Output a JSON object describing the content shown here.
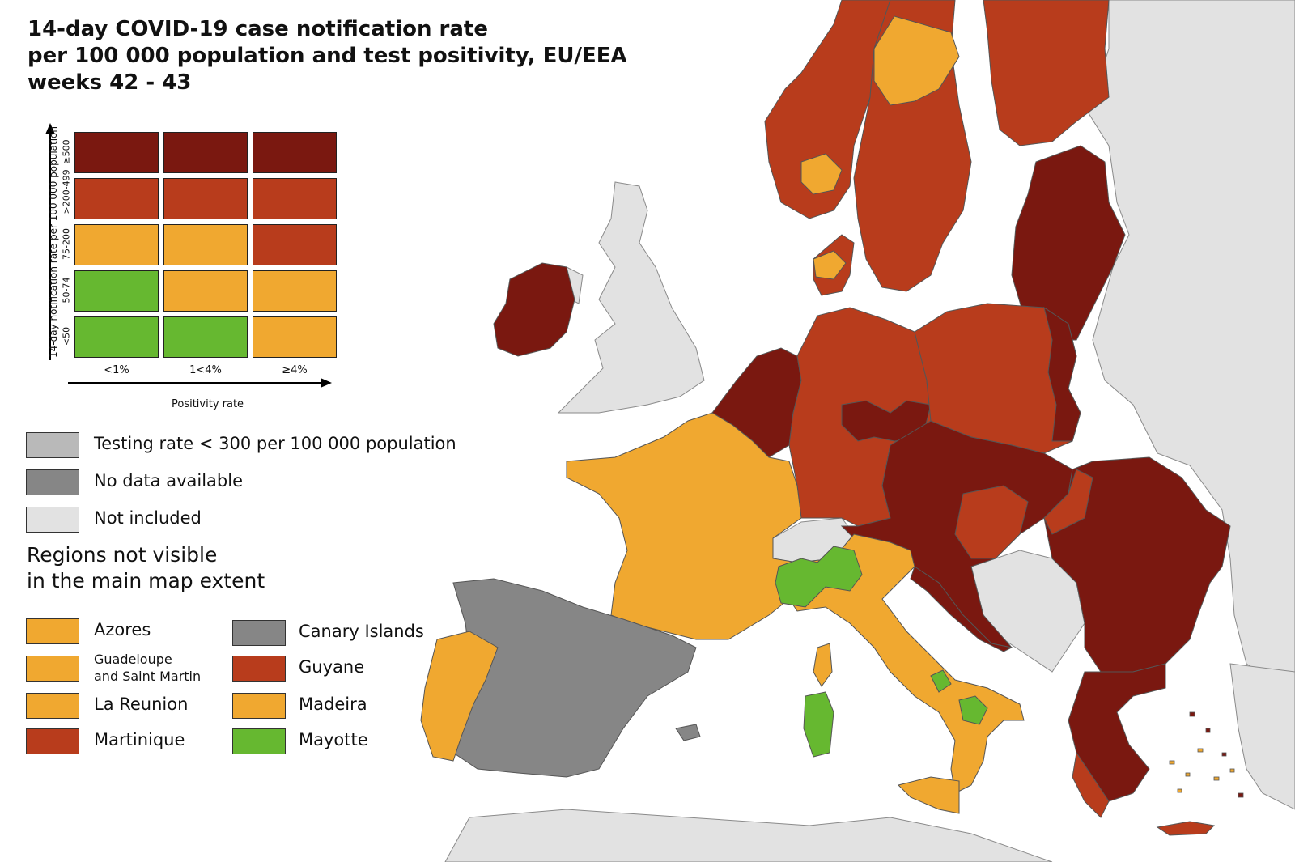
{
  "title": {
    "line1": "14-day COVID-19 case notification rate",
    "line2": "per 100 000 population and test positivity, EU/EEA",
    "line3": "weeks 42 - 43"
  },
  "colors": {
    "dark_red": "#7a1810",
    "red": "#b83c1c",
    "orange": "#f0a830",
    "green": "#66b830",
    "grey_low_testing": "#b9b9b9",
    "grey_no_data": "#868686",
    "grey_not_included": "#e2e2e2",
    "sea": "#ffffff"
  },
  "matrix": {
    "y_axis_title": "14-day notification rate per 100 000 population",
    "x_axis_title": "Positivity rate",
    "rows": [
      "≥500",
      ">200-499",
      "75-200",
      "50-74",
      "<50"
    ],
    "cols": [
      "<1%",
      "1<4%",
      "≥4%"
    ],
    "cells": [
      [
        "dark_red",
        "dark_red",
        "dark_red"
      ],
      [
        "red",
        "red",
        "red"
      ],
      [
        "orange",
        "orange",
        "red"
      ],
      [
        "green",
        "orange",
        "orange"
      ],
      [
        "green",
        "green",
        "orange"
      ]
    ]
  },
  "legend": {
    "low_testing": "Testing rate < 300 per 100 000 population",
    "no_data": "No data available",
    "not_included": "Not included"
  },
  "regions_heading": {
    "line1": "Regions not visible",
    "line2": "in the main map extent"
  },
  "regions": [
    {
      "name": "Azores",
      "status": "orange"
    },
    {
      "name": "Canary Islands",
      "status": "grey_no_data"
    },
    {
      "name_line1": "Guadeloupe",
      "name_line2": "and Saint Martin",
      "status": "orange"
    },
    {
      "name": "Guyane",
      "status": "red"
    },
    {
      "name": "La Reunion",
      "status": "orange"
    },
    {
      "name": "Madeira",
      "status": "orange"
    },
    {
      "name": "Martinique",
      "status": "red"
    },
    {
      "name": "Mayotte",
      "status": "green"
    }
  ]
}
